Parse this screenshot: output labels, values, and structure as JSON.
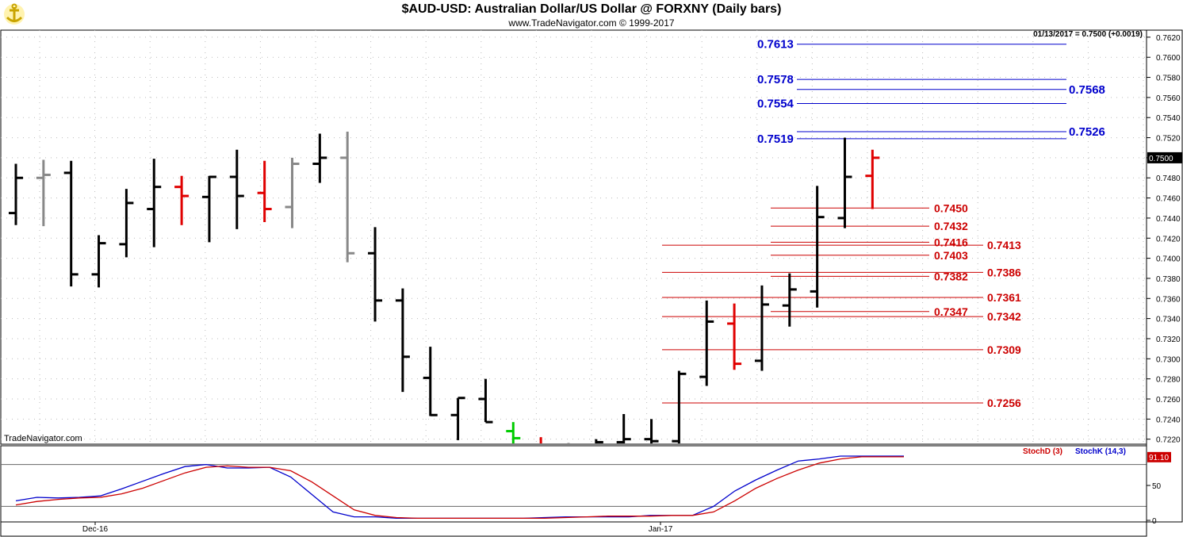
{
  "header": {
    "title": "$AUD-USD:  Australian Dollar/US Dollar @ FORXNY  (Daily bars)",
    "subtitle": "www.TradeNavigator.com © 1999-2017"
  },
  "watermark": "TradeNavigator.com",
  "colors": {
    "bar_black": "#000000",
    "bar_gray": "#888888",
    "bar_red": "#e00000",
    "bar_green": "#00cc00",
    "level_blue": "#0000cc",
    "level_red": "#cc0000",
    "stoch_d": "#cc0000",
    "stoch_k": "#0000cc"
  },
  "chart_data": [
    {
      "type": "ohlc",
      "info_label": "01/13/2017 = 0.7500 (+0.0019)",
      "last_price_label": "0.7500",
      "y_axis": {
        "min": 0.7215,
        "max": 0.7627,
        "ticks": [
          "0.7620",
          "0.7600",
          "0.7580",
          "0.7560",
          "0.7540",
          "0.7520",
          "0.7500",
          "0.7480",
          "0.7460",
          "0.7440",
          "0.7420",
          "0.7400",
          "0.7380",
          "0.7360",
          "0.7340",
          "0.7320",
          "0.7300",
          "0.7280",
          "0.7260",
          "0.7240",
          "0.7220"
        ]
      },
      "x_labels": [
        "Dec-16",
        "Jan-17"
      ],
      "grid": true,
      "bars": [
        {
          "o": 0.7445,
          "h": 0.7494,
          "l": 0.7433,
          "c": 0.748,
          "color": "black"
        },
        {
          "o": 0.748,
          "h": 0.7498,
          "l": 0.7432,
          "c": 0.7483,
          "color": "gray"
        },
        {
          "o": 0.7485,
          "h": 0.7497,
          "l": 0.7372,
          "c": 0.7384,
          "color": "black"
        },
        {
          "o": 0.7384,
          "h": 0.7423,
          "l": 0.7371,
          "c": 0.7415,
          "color": "black"
        },
        {
          "o": 0.7414,
          "h": 0.7469,
          "l": 0.7401,
          "c": 0.7455,
          "color": "black"
        },
        {
          "o": 0.7449,
          "h": 0.7499,
          "l": 0.7411,
          "c": 0.7471,
          "color": "black"
        },
        {
          "o": 0.7471,
          "h": 0.7482,
          "l": 0.7433,
          "c": 0.7462,
          "color": "red"
        },
        {
          "o": 0.7461,
          "h": 0.7482,
          "l": 0.7416,
          "c": 0.7481,
          "color": "black"
        },
        {
          "o": 0.7481,
          "h": 0.7508,
          "l": 0.7429,
          "c": 0.7462,
          "color": "black"
        },
        {
          "o": 0.7465,
          "h": 0.7497,
          "l": 0.7436,
          "c": 0.7449,
          "color": "red"
        },
        {
          "o": 0.7451,
          "h": 0.75,
          "l": 0.743,
          "c": 0.7494,
          "color": "gray"
        },
        {
          "o": 0.7494,
          "h": 0.7524,
          "l": 0.7475,
          "c": 0.75,
          "color": "black"
        },
        {
          "o": 0.75,
          "h": 0.7526,
          "l": 0.7396,
          "c": 0.7405,
          "color": "gray"
        },
        {
          "o": 0.7405,
          "h": 0.7431,
          "l": 0.7337,
          "c": 0.7358,
          "color": "black"
        },
        {
          "o": 0.7358,
          "h": 0.737,
          "l": 0.7267,
          "c": 0.7302,
          "color": "black"
        },
        {
          "o": 0.7281,
          "h": 0.7312,
          "l": 0.7243,
          "c": 0.7244,
          "color": "black"
        },
        {
          "o": 0.7244,
          "h": 0.7261,
          "l": 0.7219,
          "c": 0.7261,
          "color": "black"
        },
        {
          "o": 0.726,
          "h": 0.728,
          "l": 0.7237,
          "c": 0.7237,
          "color": "black"
        },
        {
          "o": 0.7228,
          "h": 0.7237,
          "l": 0.7214,
          "c": 0.7221,
          "color": "green"
        },
        {
          "o": 0.7215,
          "h": 0.7222,
          "l": 0.7214,
          "c": 0.7214,
          "color": "red"
        },
        {
          "o": 0.7214,
          "h": 0.7216,
          "l": 0.7214,
          "c": 0.7215,
          "color": "black"
        },
        {
          "o": 0.7215,
          "h": 0.722,
          "l": 0.7214,
          "c": 0.7217,
          "color": "black"
        },
        {
          "o": 0.7217,
          "h": 0.7245,
          "l": 0.7214,
          "c": 0.722,
          "color": "black"
        },
        {
          "o": 0.722,
          "h": 0.724,
          "l": 0.7214,
          "c": 0.7218,
          "color": "black"
        },
        {
          "o": 0.7218,
          "h": 0.7288,
          "l": 0.7214,
          "c": 0.7285,
          "color": "black"
        },
        {
          "o": 0.7282,
          "h": 0.7358,
          "l": 0.7273,
          "c": 0.7337,
          "color": "black"
        },
        {
          "o": 0.7335,
          "h": 0.7355,
          "l": 0.7289,
          "c": 0.7295,
          "color": "red"
        },
        {
          "o": 0.7298,
          "h": 0.7373,
          "l": 0.7288,
          "c": 0.7354,
          "color": "black"
        },
        {
          "o": 0.7353,
          "h": 0.7385,
          "l": 0.7332,
          "c": 0.7369,
          "color": "black"
        },
        {
          "o": 0.7367,
          "h": 0.7472,
          "l": 0.7351,
          "c": 0.7441,
          "color": "black"
        },
        {
          "o": 0.744,
          "h": 0.752,
          "l": 0.743,
          "c": 0.7481,
          "color": "black"
        },
        {
          "o": 0.7482,
          "h": 0.7508,
          "l": 0.7449,
          "c": 0.75,
          "color": "red"
        }
      ],
      "levels": [
        {
          "value": 0.7613,
          "label": "0.7613",
          "color": "blue",
          "side": "left"
        },
        {
          "value": 0.7578,
          "label": "0.7578",
          "color": "blue",
          "side": "left"
        },
        {
          "value": 0.7568,
          "label": "0.7568",
          "color": "blue",
          "side": "right"
        },
        {
          "value": 0.7554,
          "label": "0.7554",
          "color": "blue",
          "side": "left"
        },
        {
          "value": 0.7526,
          "label": "0.7526",
          "color": "blue",
          "side": "right"
        },
        {
          "value": 0.7519,
          "label": "0.7519",
          "color": "blue",
          "side": "left"
        },
        {
          "value": 0.745,
          "label": "0.7450",
          "color": "red",
          "side": "near"
        },
        {
          "value": 0.7432,
          "label": "0.7432",
          "color": "red",
          "side": "near"
        },
        {
          "value": 0.7416,
          "label": "0.7416",
          "color": "red",
          "side": "near"
        },
        {
          "value": 0.7413,
          "label": "0.7413",
          "color": "red",
          "side": "far"
        },
        {
          "value": 0.7403,
          "label": "0.7403",
          "color": "red",
          "side": "near"
        },
        {
          "value": 0.7386,
          "label": "0.7386",
          "color": "red",
          "side": "far"
        },
        {
          "value": 0.7382,
          "label": "0.7382",
          "color": "red",
          "side": "near"
        },
        {
          "value": 0.7361,
          "label": "0.7361",
          "color": "red",
          "side": "far"
        },
        {
          "value": 0.7347,
          "label": "0.7347",
          "color": "red",
          "side": "near"
        },
        {
          "value": 0.7342,
          "label": "0.7342",
          "color": "red",
          "side": "far"
        },
        {
          "value": 0.7309,
          "label": "0.7309",
          "color": "red",
          "side": "far"
        },
        {
          "value": 0.7256,
          "label": "0.7256",
          "color": "red",
          "side": "far"
        }
      ]
    },
    {
      "type": "line",
      "legend": [
        {
          "name": "StochD (3)",
          "color": "red"
        },
        {
          "name": "StochK (14,3)",
          "color": "blue"
        }
      ],
      "last_value_label": "91.10",
      "y_axis": {
        "min": 0,
        "max": 100,
        "ticks": [
          "50",
          "0"
        ]
      },
      "reference_lines": [
        20,
        80
      ],
      "x": [
        0,
        1,
        2,
        3,
        4,
        5,
        6,
        7,
        8,
        9,
        10,
        11,
        12,
        13,
        14,
        15,
        16,
        17,
        18,
        19,
        20,
        21,
        22,
        23,
        24,
        25,
        26,
        27,
        28,
        29,
        30,
        31,
        32,
        33,
        34,
        35,
        36,
        37,
        38,
        39,
        40,
        41,
        42
      ],
      "series": [
        {
          "name": "StochK (14,3)",
          "color": "blue",
          "values": [
            28,
            33,
            32,
            33,
            35,
            45,
            56,
            67,
            77,
            80,
            75,
            75,
            76,
            62,
            37,
            12,
            5,
            5,
            3,
            3,
            3,
            3,
            3,
            3,
            3,
            4,
            5,
            5,
            5,
            5,
            7,
            7,
            7,
            20,
            42,
            58,
            72,
            85,
            88,
            92,
            92,
            92,
            92
          ]
        },
        {
          "name": "StochD (3)",
          "color": "red",
          "values": [
            22,
            27,
            30,
            32,
            33,
            38,
            46,
            57,
            68,
            76,
            78,
            76,
            76,
            71,
            55,
            35,
            15,
            7,
            4,
            3,
            3,
            3,
            3,
            3,
            3,
            3,
            4,
            5,
            6,
            6,
            6,
            7,
            7,
            12,
            28,
            46,
            60,
            72,
            82,
            88,
            91,
            91,
            91
          ]
        }
      ]
    }
  ]
}
